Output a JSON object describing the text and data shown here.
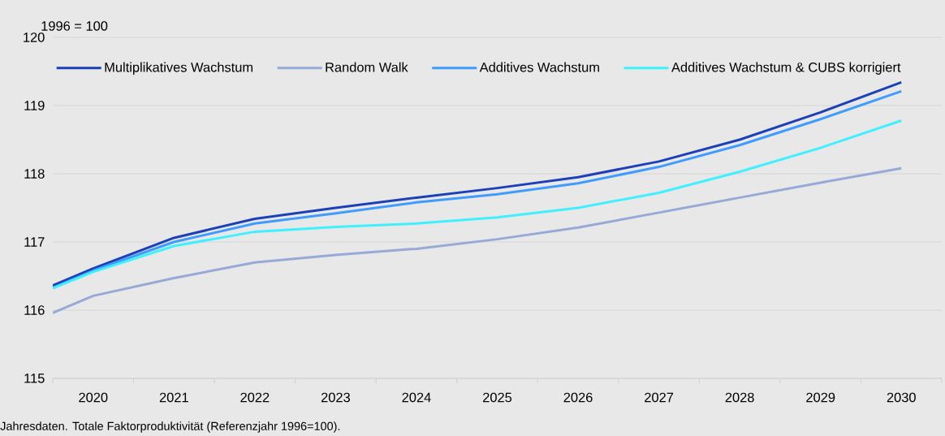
{
  "chart_data": {
    "type": "line",
    "ylabel": "1996 = 100",
    "annotations": [
      "Jahresdaten. Totale Faktorproduktivität (Referenzjahr 1996=100)."
    ],
    "x": [
      2019.5,
      2020,
      2021,
      2022,
      2023,
      2024,
      2025,
      2026,
      2027,
      2028,
      2029,
      2030
    ],
    "series": [
      {
        "name": "Multiplikatives Wachstum",
        "color": "#1c40b8",
        "values": [
          116.36,
          116.61,
          117.06,
          117.34,
          117.5,
          117.65,
          117.79,
          117.95,
          118.18,
          118.5,
          118.9,
          119.34
        ]
      },
      {
        "name": "Random Walk",
        "color": "#97a9d6",
        "values": [
          115.96,
          116.21,
          116.47,
          116.7,
          116.81,
          116.9,
          117.04,
          117.21,
          117.43,
          117.65,
          117.87,
          118.08
        ]
      },
      {
        "name": "Additives Wachstum",
        "color": "#3f9cff",
        "values": [
          116.33,
          116.58,
          117.0,
          117.27,
          117.42,
          117.58,
          117.7,
          117.86,
          118.1,
          118.42,
          118.8,
          119.21
        ]
      },
      {
        "name": "Additives Wachstum & CUBS korrigiert",
        "color": "#3ff0ff",
        "values": [
          116.32,
          116.56,
          116.94,
          117.15,
          117.22,
          117.27,
          117.36,
          117.5,
          117.72,
          118.03,
          118.38,
          118.78
        ]
      }
    ],
    "xlim": [
      2019.5,
      2030.5
    ],
    "xticks": [
      {
        "value": 2019.5,
        "label": null
      },
      2020,
      {
        "value": 2020.5,
        "label": null
      },
      2021,
      {
        "value": 2021.5,
        "label": null
      },
      2022,
      {
        "value": 2022.5,
        "label": null
      },
      2023,
      {
        "value": 2023.5,
        "label": null
      },
      2024,
      {
        "value": 2024.5,
        "label": null
      },
      2025,
      {
        "value": 2025.5,
        "label": null
      },
      2026,
      {
        "value": 2026.5,
        "label": null
      },
      2027,
      {
        "value": 2027.5,
        "label": null
      },
      2028,
      {
        "value": 2028.5,
        "label": null
      },
      2029,
      {
        "value": 2029.5,
        "label": null
      },
      2030,
      {
        "value": 2030.5,
        "label": null
      }
    ],
    "ylim": [
      115,
      120
    ],
    "yticks": [
      115,
      116,
      117,
      118,
      119,
      120
    ],
    "grid": "y",
    "legend": "top",
    "line_style": "solid",
    "marker": "none"
  }
}
